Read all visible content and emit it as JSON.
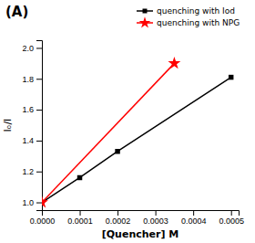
{
  "chart_data": {
    "type": "line",
    "title": "(A)",
    "x_label": "[Quencher] M",
    "y_label": "Iₒ/I",
    "series": [
      {
        "name": "quenching with Iod",
        "color": "#000000",
        "marker": "square",
        "line_style": "solid",
        "x": [
          0.0,
          0.0001,
          0.0002,
          0.0005
        ],
        "values": [
          1.0,
          1.16,
          1.33,
          1.81
        ]
      },
      {
        "name": "quenching with NPG",
        "color": "#ff0000",
        "marker": "star",
        "line_style": "solid",
        "x": [
          0.0,
          0.00035
        ],
        "values": [
          1.0,
          1.9
        ]
      }
    ],
    "xlim": [
      0.0,
      0.00052
    ],
    "ylim": [
      0.95,
      2.05
    ],
    "xticks": [
      {
        "value": 0.0,
        "label": "0.0000"
      },
      0.0001,
      0.0002,
      0.0003,
      0.0004,
      0.0005
    ],
    "yticks": [
      {
        "value": 1.0,
        "label": "1.0"
      },
      1.2,
      1.4,
      1.6,
      1.8,
      {
        "value": 2.0,
        "label": "2.0"
      }
    ],
    "grid": false,
    "legend": "upper right"
  }
}
